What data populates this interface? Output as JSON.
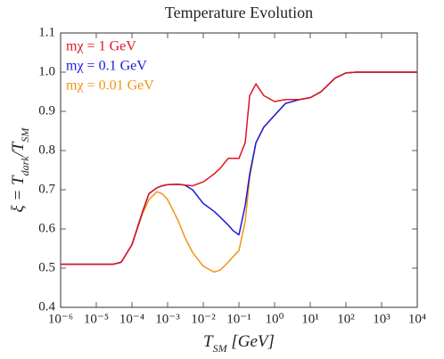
{
  "chart_data": {
    "type": "line",
    "title": "Temperature Evolution",
    "x_label": [
      "T",
      "SM",
      " [GeV]"
    ],
    "y_label": [
      "ξ = T",
      "dark",
      "/T",
      "SM"
    ],
    "log_x": true,
    "x": [
      1e-06,
      1e-05,
      3e-05,
      5e-05,
      0.0001,
      0.0002,
      0.0003,
      0.0005,
      0.0007,
      0.001,
      0.002,
      0.003,
      0.005,
      0.01,
      0.02,
      0.03,
      0.05,
      0.07,
      0.1,
      0.15,
      0.2,
      0.3,
      0.5,
      1,
      2,
      5,
      10,
      20,
      50,
      100,
      200,
      1000,
      10000
    ],
    "series": [
      {
        "name": "mχ = 1 GeV",
        "color": "#e0141e",
        "values": [
          0.51,
          0.51,
          0.51,
          0.515,
          0.56,
          0.645,
          0.69,
          0.705,
          0.71,
          0.713,
          0.714,
          0.712,
          0.71,
          0.72,
          0.74,
          0.755,
          0.78,
          0.78,
          0.78,
          0.82,
          0.94,
          0.97,
          0.94,
          0.925,
          0.93,
          0.93,
          0.935,
          0.95,
          0.985,
          0.998,
          1.0,
          1.0,
          1.0
        ]
      },
      {
        "name": "mχ = 0.1 GeV",
        "color": "#1a1adc",
        "values": [
          0.51,
          0.51,
          0.51,
          0.515,
          0.56,
          0.645,
          0.69,
          0.705,
          0.71,
          0.713,
          0.714,
          0.712,
          0.7,
          0.665,
          0.645,
          0.63,
          0.61,
          0.595,
          0.585,
          0.66,
          0.74,
          0.82,
          0.86,
          0.89,
          0.92,
          0.93,
          0.935,
          0.95,
          0.985,
          0.998,
          1.0,
          1.0,
          1.0
        ]
      },
      {
        "name": "mχ = 0.01 GeV",
        "color": "#f39317",
        "values": [
          0.51,
          0.51,
          0.51,
          0.515,
          0.56,
          0.64,
          0.675,
          0.695,
          0.69,
          0.675,
          0.62,
          0.58,
          0.54,
          0.505,
          0.49,
          0.495,
          0.515,
          0.53,
          0.545,
          0.62,
          0.73,
          0.82,
          0.86,
          0.89,
          0.92,
          0.93,
          0.935,
          0.95,
          0.985,
          0.998,
          1.0,
          1.0,
          1.0
        ]
      }
    ],
    "xlim": [
      1e-06,
      10000
    ],
    "xticks": [
      {
        "value": 1e-06,
        "label": "10⁻⁶"
      },
      {
        "value": 1e-05,
        "label": "10⁻⁵"
      },
      {
        "value": 0.0001,
        "label": "10⁻⁴"
      },
      {
        "value": 0.001,
        "label": "10⁻³"
      },
      {
        "value": 0.01,
        "label": "10⁻²"
      },
      {
        "value": 0.1,
        "label": "10⁻¹"
      },
      {
        "value": 1,
        "label": "10⁰"
      },
      {
        "value": 10,
        "label": "10¹"
      },
      {
        "value": 100,
        "label": "10²"
      },
      {
        "value": 1000,
        "label": "10³"
      },
      {
        "value": 10000,
        "label": "10⁴"
      }
    ],
    "ylim": [
      0.4,
      1.1
    ],
    "yticks": [
      0.4,
      0.5,
      0.6,
      0.7,
      0.8,
      0.9,
      {
        "value": 1,
        "label": "1.0"
      },
      1.1
    ],
    "legend": "upper left",
    "grid": false
  }
}
